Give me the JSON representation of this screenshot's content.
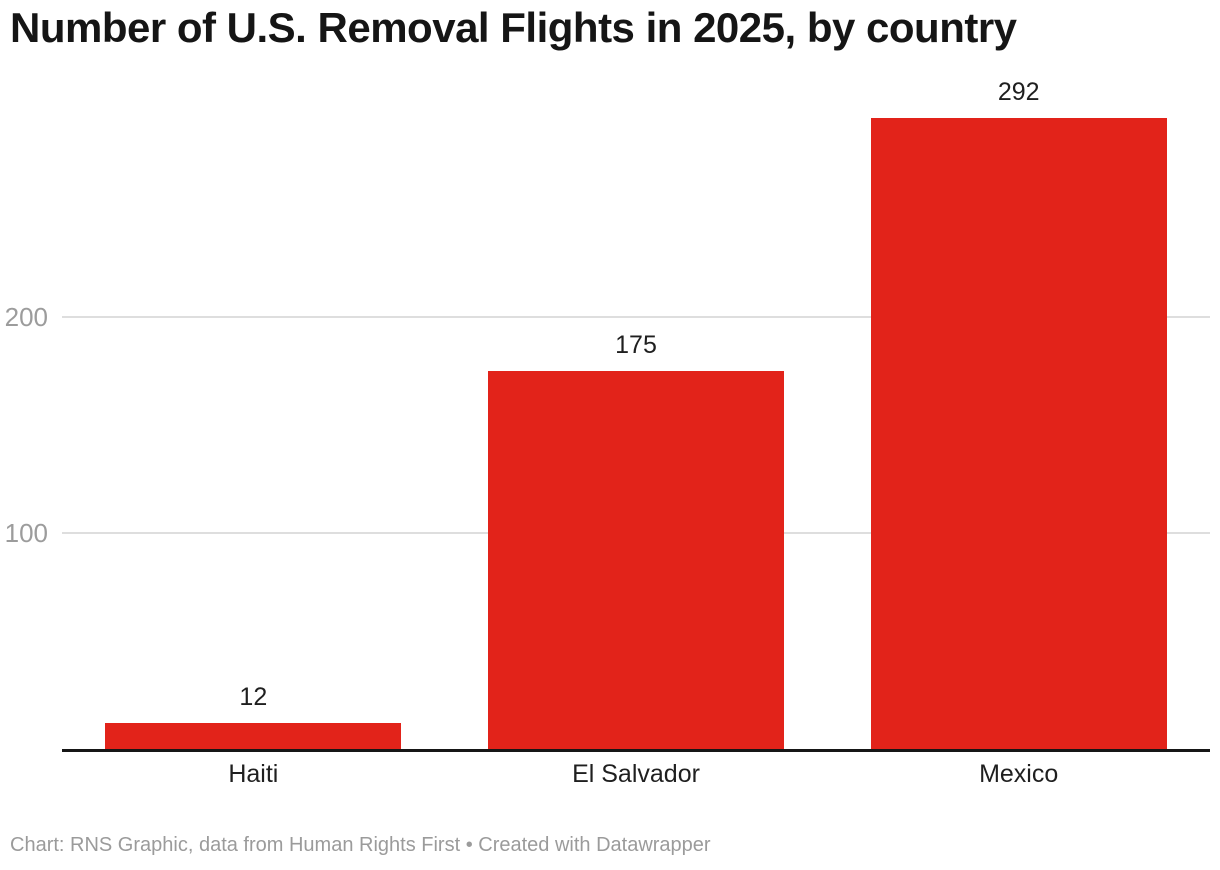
{
  "chart_data": {
    "type": "bar",
    "title": "Number of U.S. Removal Flights in 2025, by country",
    "categories": [
      "Haiti",
      "El Salvador",
      "Mexico"
    ],
    "values": [
      12,
      175,
      292
    ],
    "yticks": [
      100,
      200
    ],
    "ylim": [
      0,
      300
    ],
    "grid": true,
    "value_labels": true,
    "bar_color": "#e2231a",
    "axis_color": "#161616",
    "gridline_color": "#dedede",
    "tick_label_color": "#9c9c9c",
    "footer": "Chart: RNS Graphic, data from Human Rights First • Created with Datawrapper"
  }
}
